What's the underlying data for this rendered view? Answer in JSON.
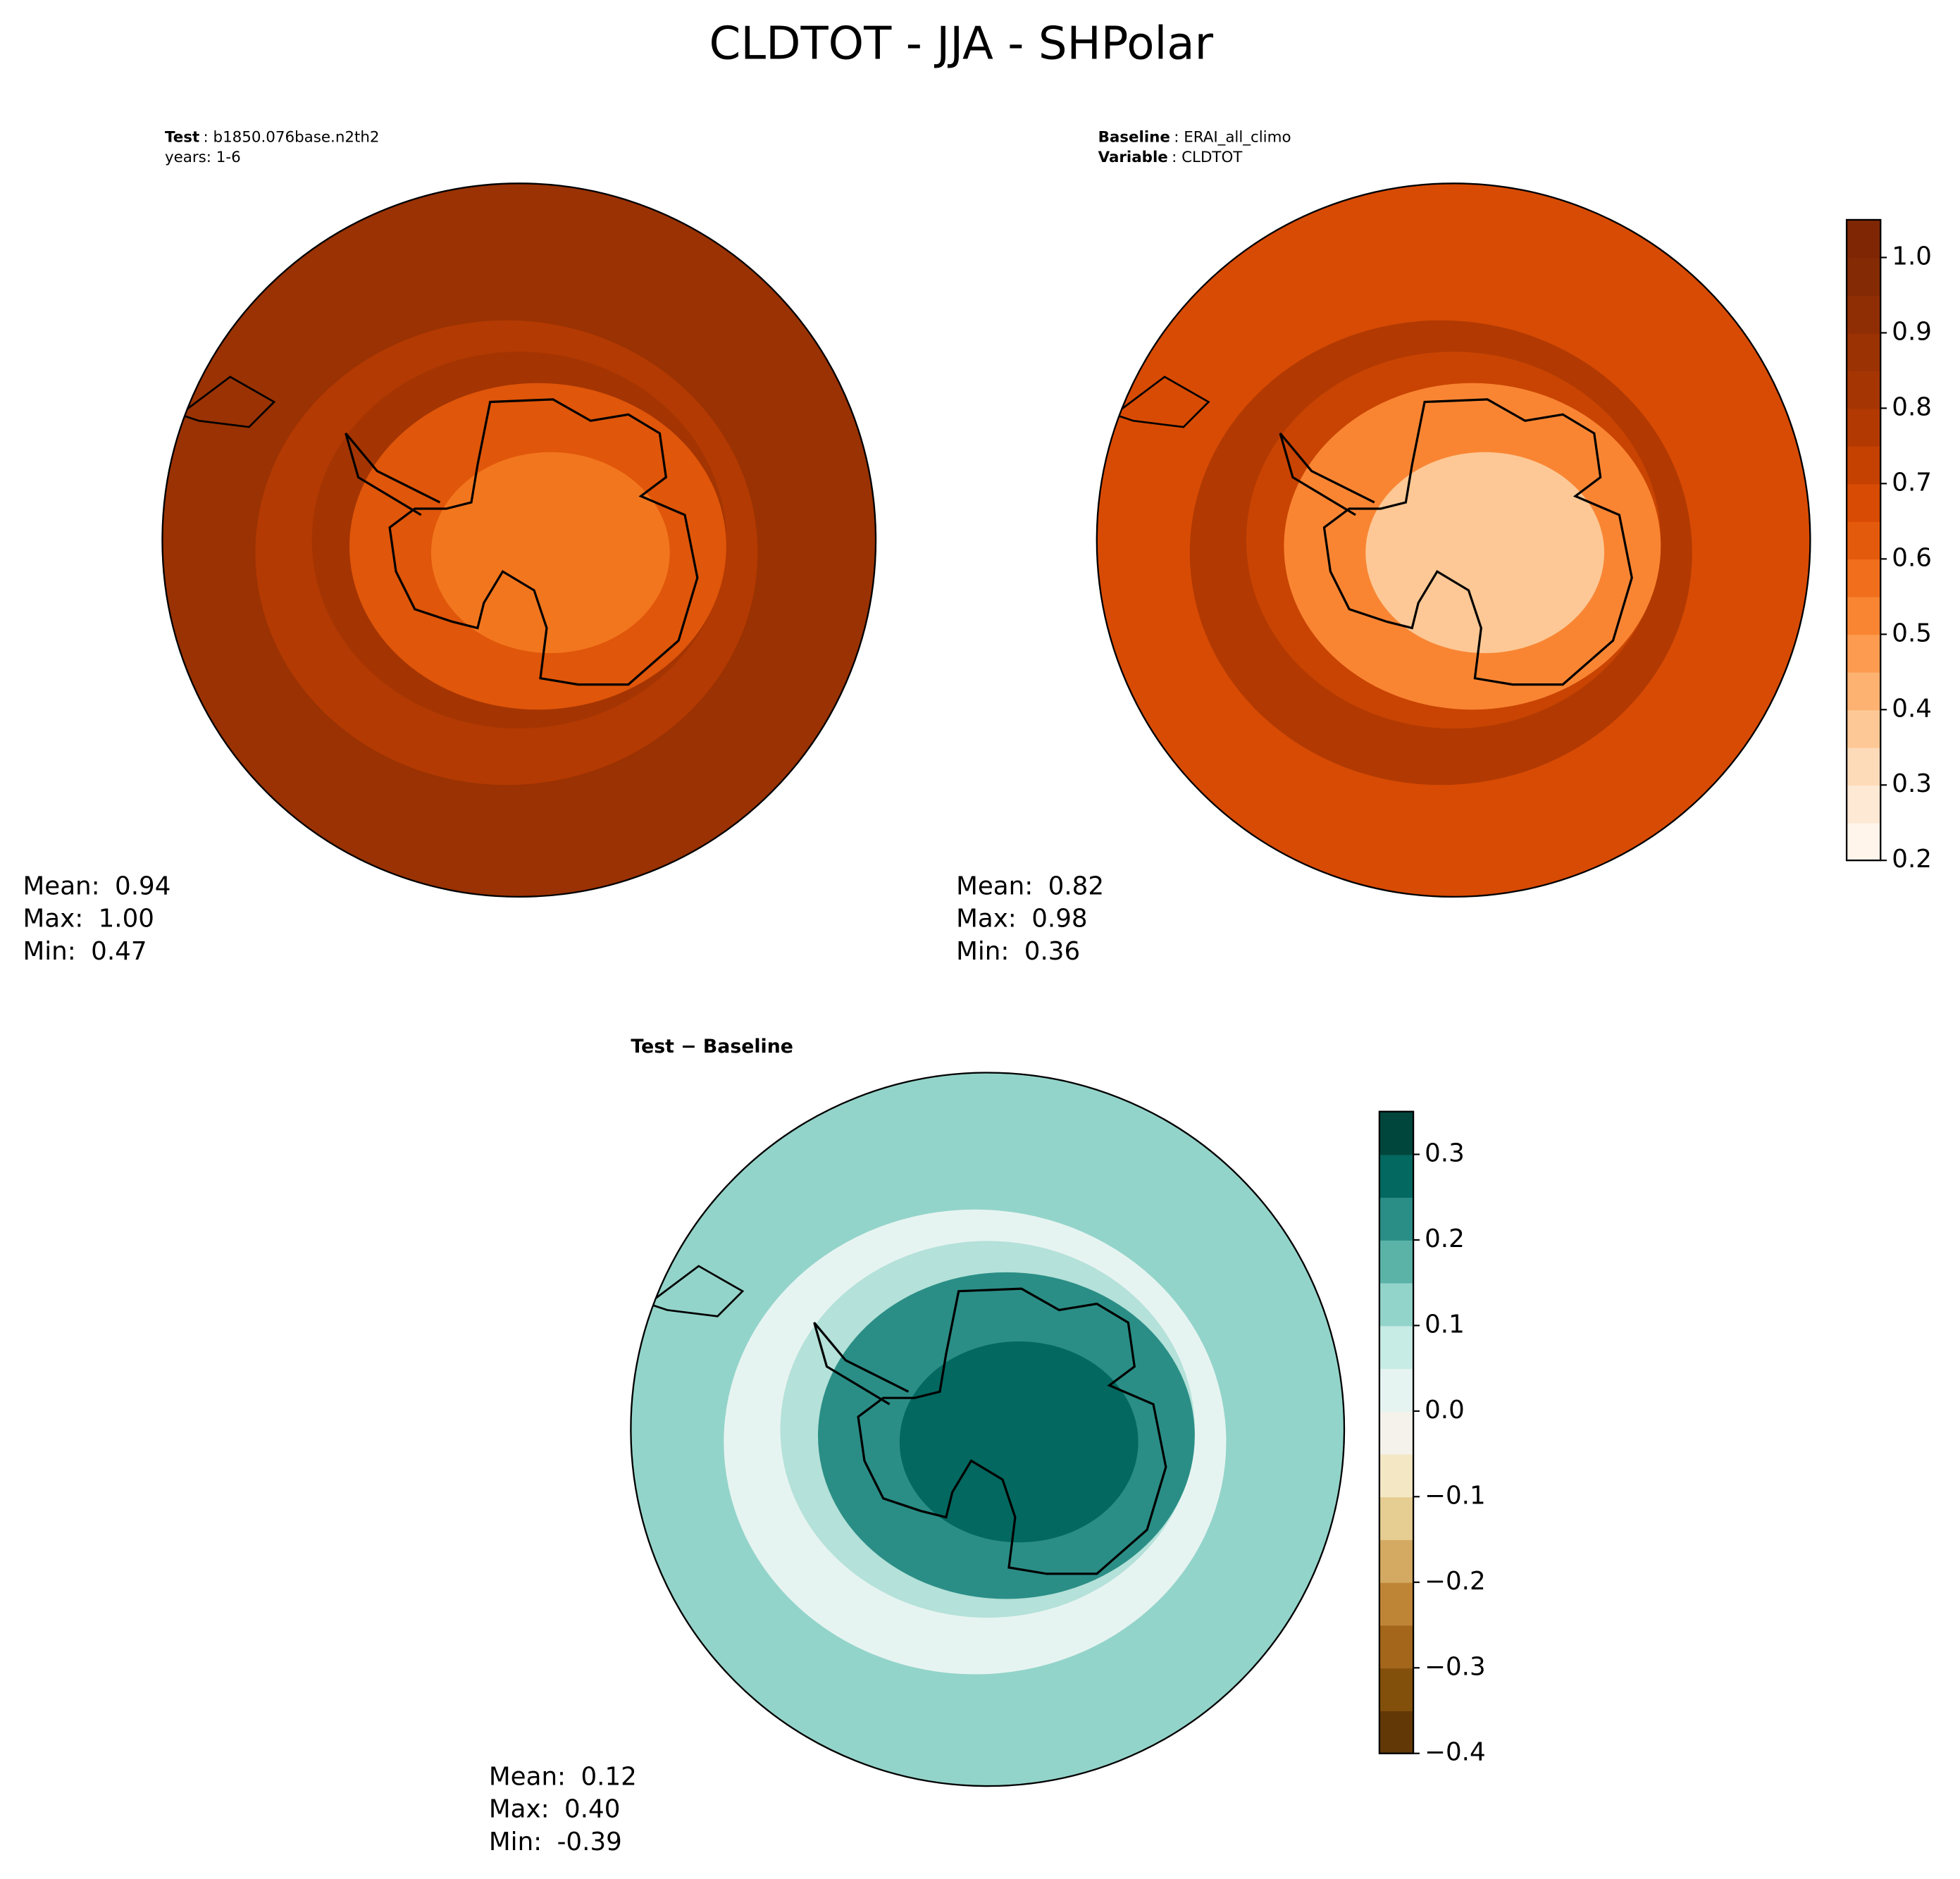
{
  "title": "CLDTOT - JJA - SHPolar",
  "panels": [
    {
      "header": [
        {
          "bold": "Test",
          "text": ": b1850.076base.n2th2"
        },
        {
          "text": "years: 1-6"
        }
      ],
      "stats": [
        {
          "label": "Mean:",
          "value": "0.94"
        },
        {
          "label": "Max:",
          "value": "1.00"
        },
        {
          "label": "Min:",
          "value": "0.47"
        }
      ],
      "base_color": "#9a3203",
      "ring_color": "#b33a02",
      "land_color": "#e0560a",
      "land_inner": "#f2761e"
    },
    {
      "header": [
        {
          "bold": "Baseline",
          "text": ": ERAI_all_climo"
        },
        {
          "bold": "Variable",
          "text": ": CLDTOT"
        }
      ],
      "stats": [
        {
          "label": "Mean:",
          "value": "0.82"
        },
        {
          "label": "Max:",
          "value": "0.98"
        },
        {
          "label": "Min:",
          "value": "0.36"
        }
      ],
      "base_color": "#d84b04",
      "ring_color": "#b23a02",
      "land_color": "#f98533",
      "land_inner": "#fdc895"
    },
    {
      "header": [
        {
          "bold": "Test − Baseline"
        }
      ],
      "stats": [
        {
          "label": "Mean:",
          "value": "0.12"
        },
        {
          "label": "Max:",
          "value": "0.40"
        },
        {
          "label": "Min:",
          "value": "-0.39"
        }
      ],
      "base_color": "#93d4ca",
      "ring_color": "#e6f4f1",
      "land_color": "#2a8e86",
      "land_inner": "#03685f"
    }
  ],
  "colorbars": [
    {
      "lim": [
        0.2,
        1.05
      ],
      "ticks": [
        0.2,
        0.3,
        0.4,
        0.5,
        0.6,
        0.7,
        0.8,
        0.9,
        {
          "value": 1,
          "label": "1.0"
        }
      ],
      "colors": [
        "#fff5eb",
        "#fee9d4",
        "#fddbb9",
        "#fdc895",
        "#fdb271",
        "#fd9c51",
        "#f98533",
        "#f16f1c",
        "#e45a0c",
        "#d84b04",
        "#c54101",
        "#b23a02",
        "#a53503",
        "#9b3203",
        "#8f2d04",
        "#842a05",
        "#7f2704"
      ]
    },
    {
      "lim": [
        -0.4,
        0.35
      ],
      "ticks": [
        {
          "value": -0.4,
          "label": "−0.4"
        },
        {
          "value": -0.3,
          "label": "−0.3"
        },
        {
          "value": -0.2,
          "label": "−0.2"
        },
        {
          "value": -0.1,
          "label": "−0.1"
        },
        {
          "value": 0,
          "label": "0.0"
        },
        0.1,
        0.2,
        0.3
      ],
      "colors": [
        "#623807",
        "#83500b",
        "#a3661b",
        "#bf8537",
        "#d4aa62",
        "#e6cd91",
        "#f4e7c4",
        "#f4f2ea",
        "#e6f4f1",
        "#c7ebe5",
        "#93d4ca",
        "#5bb3a8",
        "#2a8e86",
        "#03685f",
        "#00463c"
      ]
    }
  ]
}
